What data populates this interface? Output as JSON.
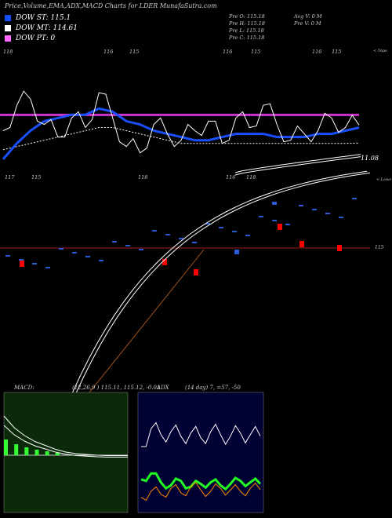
{
  "header": {
    "title": "Price,Volume,EMA,ADX,MACD Charts for LDER MunafaSutra.com"
  },
  "legend": [
    {
      "label": "DOW ST: 115.1",
      "color": "#1a4fff"
    },
    {
      "label": "DOW MT: 114.61",
      "color": "#ffffff"
    },
    {
      "label": "DOW PT: 0",
      "color": "#ff66ff"
    }
  ],
  "stats": {
    "prev_open": "Pre  O: 115.18",
    "prev_high": "Pre  H: 115.18",
    "prev_low": "Pre  L: 115.18",
    "prev_close": "Pre  C: 115.18",
    "avg_volume": "Avg V: 0  M",
    "prev_volume": "Pre  V: 0  M"
  },
  "labels": {
    "topo": "< Topo",
    "lows": "< Lows",
    "last_value": "11.08",
    "price_line": "115",
    "top_ticks": [
      "118",
      "116",
      "115",
      "116",
      "115",
      "116",
      "115"
    ],
    "low_ticks": [
      "117",
      "115",
      "118",
      "116",
      "118"
    ]
  },
  "macd": {
    "label": "MACD:",
    "values": "(12,26,9 ) 115.11,  115.12,  -0.01"
  },
  "adx": {
    "label": "ADX",
    "values": "(14  day) 7,  =57,  -50"
  },
  "colors": {
    "background": "#000000",
    "ema_short": "#1a4fff",
    "pt_line": "#cc33cc",
    "price_hline": "#a02020",
    "macd_bg": "#0a2a0a",
    "adx_bg": "#000033",
    "adx_plus": "#22ff22",
    "adx_minus": "#ff8800",
    "volume_up": "#2a5bd7",
    "volume_down": "#ff0000"
  },
  "chart_data": {
    "type": "line",
    "title": "Price,Volume,EMA,ADX,MACD Charts for LDER MunafaSutra.com",
    "series": [
      {
        "name": "DOW ST: 115.1",
        "values": [
          114.1,
          114.6,
          115.0,
          115.3,
          115.4,
          115.5,
          115.5,
          115.7,
          115.6,
          115.3,
          115.2,
          115.0,
          114.9,
          114.8,
          114.7,
          114.7,
          114.8,
          114.9,
          114.9,
          114.9,
          114.8,
          114.8,
          114.8,
          114.9,
          114.9,
          115.0,
          115.1
        ]
      },
      {
        "name": "DOW MT: 114.61",
        "values": [
          114.4,
          114.5,
          114.6,
          114.7,
          114.8,
          114.9,
          115.0,
          115.1,
          115.1,
          115.0,
          114.9,
          114.8,
          114.7,
          114.6,
          114.6,
          114.6,
          114.6,
          114.6,
          114.6,
          114.6,
          114.6,
          114.6,
          114.6,
          114.6,
          114.6,
          114.6,
          114.61
        ]
      },
      {
        "name": "DOW PT: 0",
        "values": [
          115.5,
          115.5,
          115.5,
          115.5,
          115.5,
          115.5,
          115.5,
          115.5,
          115.5,
          115.5,
          115.5,
          115.5,
          115.5,
          115.5,
          115.5,
          115.5,
          115.5,
          115.5,
          115.5,
          115.5,
          115.5,
          115.5,
          115.5,
          115.5,
          115.5,
          115.5,
          115.5
        ]
      }
    ],
    "price": [
      115.0,
      115.8,
      116.0,
      115.2,
      114.8,
      115.4,
      115.1,
      116.2,
      115.4,
      114.5,
      114.3,
      115.2,
      114.9,
      114.7,
      115.0,
      115.3,
      114.6,
      115.4,
      115.1,
      115.8,
      115.2,
      114.7,
      114.9,
      115.0,
      115.4,
      115.1,
      115.18
    ],
    "volume": [
      0.4,
      0.6,
      0.3,
      0.8,
      0.5,
      0.7,
      0.9,
      0.4,
      0.6,
      0.3,
      0.2,
      0.5,
      0.4,
      0.3,
      0.6,
      0.5,
      0.7,
      0.4,
      0.8,
      0.6,
      0.5,
      0.7,
      0.4,
      0.9,
      0.6,
      0.5,
      0.4
    ],
    "macd": [
      1.0,
      0.7,
      0.5,
      0.35,
      0.25,
      0.15,
      0.08,
      0.04,
      0.02,
      0.0,
      -0.01,
      -0.01,
      -0.01
    ],
    "adx_values": [
      40,
      52,
      48,
      50,
      47,
      49,
      46,
      50,
      48,
      47,
      49,
      48,
      47
    ],
    "di_plus": [
      18,
      22,
      16,
      14,
      17,
      13,
      15,
      16,
      14,
      15,
      17,
      16,
      15
    ],
    "di_minus": [
      6,
      10,
      8,
      12,
      9,
      13,
      11,
      10,
      12,
      11,
      10,
      12,
      11
    ]
  }
}
